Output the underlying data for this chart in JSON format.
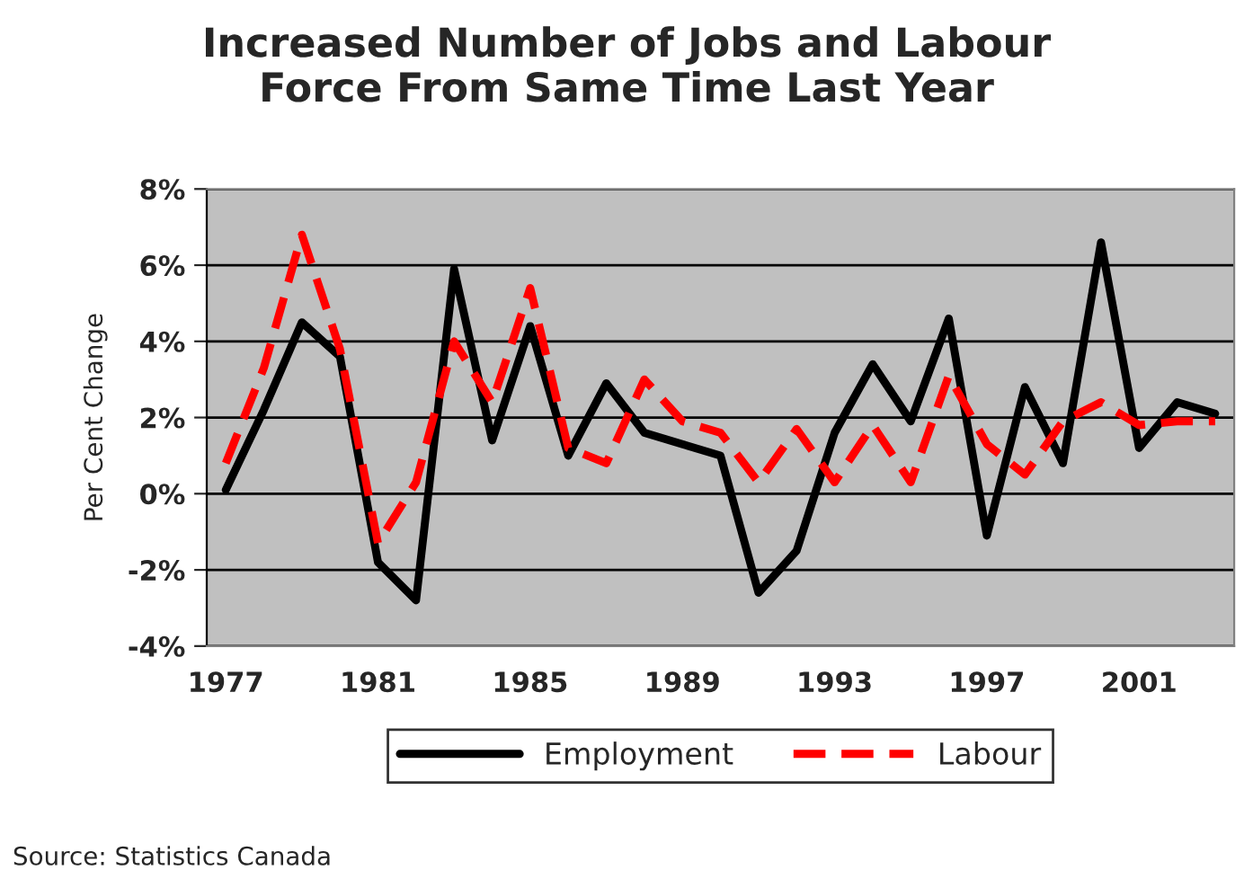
{
  "chart_data": {
    "type": "line",
    "title": "Increased Number of Jobs and Labour\nForce From Same Time Last Year",
    "ylabel": "Per Cent Change",
    "categories": [
      "1977",
      null,
      null,
      null,
      "1981",
      null,
      null,
      null,
      "1985",
      null,
      null,
      null,
      "1989",
      null,
      null,
      null,
      "1993",
      null,
      null,
      null,
      "1997",
      null,
      null,
      null,
      "2001",
      null,
      null
    ],
    "series": [
      {
        "name": "Employment",
        "color": "#000000",
        "line_style": "solid",
        "values": [
          0.1,
          2.2,
          4.5,
          3.6,
          -1.8,
          -2.8,
          5.9,
          1.4,
          4.4,
          1.0,
          2.9,
          1.6,
          1.3,
          1.0,
          -2.6,
          -1.5,
          1.6,
          3.4,
          1.9,
          4.6,
          -1.1,
          2.8,
          0.8,
          6.6,
          1.2,
          2.4,
          2.1
        ]
      },
      {
        "name": "Labour",
        "color": "#ff0000",
        "line_style": "dashed",
        "values": [
          0.8,
          3.3,
          6.8,
          3.8,
          -1.3,
          0.3,
          4.0,
          2.4,
          5.4,
          1.2,
          0.8,
          3.0,
          1.9,
          1.6,
          0.3,
          1.7,
          0.3,
          1.8,
          0.3,
          3.1,
          1.3,
          0.5,
          1.9,
          2.4,
          1.8,
          1.9,
          1.9
        ]
      }
    ],
    "ylim": [
      -4,
      8
    ],
    "yticks": [
      {
        "value": -4,
        "label": "-4%"
      },
      {
        "value": -2,
        "label": "-2%"
      },
      {
        "value": 0,
        "label": "0%"
      },
      {
        "value": 2,
        "label": "2%"
      },
      {
        "value": 4,
        "label": "4%"
      },
      {
        "value": 6,
        "label": "6%"
      },
      {
        "value": 8,
        "label": "8%"
      }
    ],
    "grid": "y",
    "legend": "bottom",
    "marker": "none",
    "annotations": [
      "Source: Statistics Canada"
    ]
  }
}
